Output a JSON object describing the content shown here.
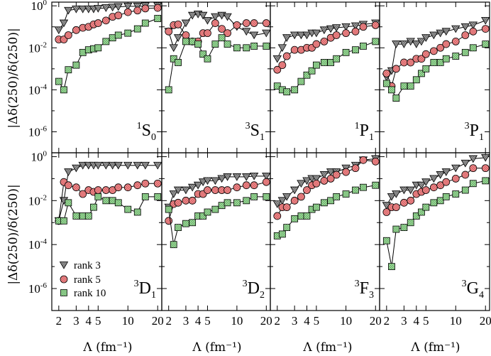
{
  "chart_data": {
    "type": "line",
    "ylabel": "|Δδ(250)/δ(250)|",
    "xlabel": "Λ (fm⁻¹)",
    "xscale": "log",
    "yscale": "log",
    "xlim": [
      1.7,
      22
    ],
    "ylim": [
      1e-07,
      1.5
    ],
    "x_ticks": [
      2,
      3,
      4,
      5,
      10,
      20
    ],
    "x_tick_labels": [
      "2",
      "3",
      "4",
      "5",
      "10",
      "20"
    ],
    "y_ticks": [
      {
        "base": "10",
        "exp": "0",
        "value": 1
      },
      {
        "base": "10",
        "exp": "-2",
        "value": 0.01
      },
      {
        "base": "10",
        "exp": "-4",
        "value": 0.0001
      },
      {
        "base": "10",
        "exp": "-6",
        "value": 1e-06
      }
    ],
    "legend": {
      "position": "bottom-left of panel 3D1",
      "entries": [
        {
          "name": "rank 3",
          "marker": "triangle-down",
          "color": "#8c8c8c"
        },
        {
          "name": "rank 5",
          "marker": "circle",
          "color": "#f08080"
        },
        {
          "name": "rank 10",
          "marker": "square",
          "color": "#90d890"
        }
      ]
    },
    "x": [
      2,
      2.25,
      2.5,
      3,
      3.5,
      4,
      4.5,
      5,
      6,
      7,
      8,
      10,
      12.5,
      15,
      20
    ],
    "panels": [
      {
        "name": "1S0",
        "label": {
          "pre": "1",
          "main": "S",
          "sub": "0"
        },
        "series": [
          {
            "name": "rank 3",
            "values": [
              0.07,
              0.15,
              0.6,
              0.7,
              0.7,
              0.7,
              0.7,
              0.75,
              0.8,
              0.85,
              0.9,
              0.95,
              0.95,
              1.0,
              1.0
            ]
          },
          {
            "name": "rank 5",
            "values": [
              0.025,
              0.025,
              0.04,
              0.07,
              0.09,
              0.1,
              0.13,
              0.15,
              0.2,
              0.3,
              0.35,
              0.5,
              0.6,
              0.75,
              0.8
            ]
          },
          {
            "name": "rank 10",
            "values": [
              0.00025,
              0.0001,
              0.0009,
              0.0015,
              0.006,
              0.008,
              0.009,
              0.01,
              0.02,
              0.03,
              0.04,
              0.05,
              0.08,
              0.15,
              0.25
            ]
          }
        ]
      },
      {
        "name": "3S1",
        "label": {
          "pre": "3",
          "main": "S",
          "sub": "1"
        },
        "series": [
          {
            "name": "rank 3",
            "values": [
              0.06,
              0.01,
              0.03,
              0.15,
              0.35,
              0.4,
              0.35,
              0.2,
              0.3,
              0.35,
              0.3,
              0.1,
              0.06,
              0.04,
              0.05
            ]
          },
          {
            "name": "rank 5",
            "values": [
              0.06,
              0.12,
              0.13,
              0.04,
              0.02,
              0.02,
              0.05,
              0.05,
              0.15,
              0.08,
              0.05,
              0.12,
              0.15,
              0.15,
              0.15
            ]
          },
          {
            "name": "rank 10",
            "values": [
              0.0001,
              0.003,
              0.002,
              0.02,
              0.02,
              0.015,
              0.005,
              0.003,
              0.015,
              0.03,
              0.015,
              0.01,
              0.01,
              0.012,
              0.012
            ]
          }
        ]
      },
      {
        "name": "1P1",
        "label": {
          "pre": "1",
          "main": "P",
          "sub": "1"
        },
        "series": [
          {
            "name": "rank 3",
            "values": [
              0.003,
              0.01,
              0.03,
              0.04,
              0.04,
              0.04,
              0.05,
              0.05,
              0.07,
              0.08,
              0.09,
              0.1,
              0.11,
              0.13,
              0.15
            ]
          },
          {
            "name": "rank 5",
            "values": [
              0.0009,
              0.0015,
              0.004,
              0.008,
              0.008,
              0.01,
              0.01,
              0.015,
              0.02,
              0.03,
              0.04,
              0.05,
              0.06,
              0.1,
              0.12
            ]
          },
          {
            "name": "rank 10",
            "values": [
              0.00015,
              0.0001,
              8e-05,
              0.0001,
              0.00025,
              0.0005,
              0.0008,
              0.0015,
              0.002,
              0.002,
              0.003,
              0.006,
              0.008,
              0.012,
              0.02
            ]
          }
        ]
      },
      {
        "name": "3P1",
        "label": {
          "pre": "3",
          "main": "P",
          "sub": "1"
        },
        "series": [
          {
            "name": "rank 3",
            "values": [
              0.0004,
              0.0008,
              0.015,
              0.015,
              0.02,
              0.015,
              0.02,
              0.03,
              0.04,
              0.05,
              0.06,
              0.08,
              0.1,
              0.12,
              0.2
            ]
          },
          {
            "name": "rank 5",
            "values": [
              0.0006,
              0.00015,
              0.001,
              0.002,
              0.002,
              0.003,
              0.003,
              0.005,
              0.007,
              0.01,
              0.015,
              0.02,
              0.04,
              0.06,
              0.08
            ]
          },
          {
            "name": "rank 10",
            "values": [
              0.0002,
              0.0001,
              4e-05,
              0.00015,
              0.00015,
              0.0003,
              0.0006,
              0.001,
              0.002,
              0.002,
              0.003,
              0.004,
              0.006,
              0.01,
              0.015
            ]
          }
        ]
      },
      {
        "name": "3D1",
        "label": {
          "pre": "3",
          "main": "D",
          "sub": "1"
        },
        "series": [
          {
            "name": "rank 3",
            "values": [
              0.0012,
              0.01,
              0.2,
              0.3,
              0.4,
              0.4,
              0.4,
              0.4,
              0.4,
              0.4,
              0.4,
              0.4,
              0.4,
              0.4,
              0.4
            ]
          },
          {
            "name": "rank 5",
            "values": [
              0.0012,
              0.07,
              0.05,
              0.04,
              0.02,
              0.03,
              0.025,
              0.03,
              0.03,
              0.03,
              0.04,
              0.04,
              0.05,
              0.06,
              0.06
            ]
          },
          {
            "name": "rank 10",
            "values": [
              0.0012,
              0.0012,
              0.008,
              0.002,
              0.002,
              0.002,
              0.005,
              0.015,
              0.01,
              0.01,
              0.008,
              0.004,
              0.003,
              0.015,
              0.015
            ]
          }
        ]
      },
      {
        "name": "3D2",
        "label": {
          "pre": "3",
          "main": "D",
          "sub": "2"
        },
        "series": [
          {
            "name": "rank 3",
            "values": [
              0.005,
              0.02,
              0.03,
              0.03,
              0.04,
              0.05,
              0.07,
              0.08,
              0.08,
              0.1,
              0.12,
              0.12,
              0.12,
              0.13,
              0.13
            ]
          },
          {
            "name": "rank 5",
            "values": [
              0.0012,
              0.007,
              0.008,
              0.01,
              0.01,
              0.02,
              0.02,
              0.03,
              0.03,
              0.03,
              0.03,
              0.04,
              0.05,
              0.05,
              0.07
            ]
          },
          {
            "name": "rank 10",
            "values": [
              0.004,
              0.0001,
              0.0006,
              0.0009,
              0.001,
              0.002,
              0.002,
              0.003,
              0.004,
              0.006,
              0.008,
              0.008,
              0.01,
              0.015,
              0.015
            ]
          }
        ]
      },
      {
        "name": "3F3",
        "label": {
          "pre": "3",
          "main": "F",
          "sub": "3"
        },
        "series": [
          {
            "name": "rank 3",
            "values": [
              0.007,
              0.01,
              0.015,
              0.03,
              0.06,
              0.08,
              0.1,
              0.1,
              0.15,
              0.2,
              0.2,
              0.3,
              0.4,
              0.7,
              0.8
            ]
          },
          {
            "name": "rank 5",
            "values": [
              0.002,
              0.005,
              0.005,
              0.01,
              0.015,
              0.03,
              0.05,
              0.06,
              0.08,
              0.1,
              0.15,
              0.2,
              0.3,
              0.7,
              0.6
            ]
          },
          {
            "name": "rank 10",
            "values": [
              0.00025,
              0.0003,
              0.0006,
              0.0015,
              0.002,
              0.002,
              0.004,
              0.005,
              0.008,
              0.01,
              0.015,
              0.02,
              0.03,
              0.04,
              0.05
            ]
          }
        ]
      },
      {
        "name": "3G4",
        "label": {
          "pre": "3",
          "main": "G",
          "sub": "4"
        },
        "series": [
          {
            "name": "rank 3",
            "values": [
              0.006,
              0.015,
              0.02,
              0.03,
              0.03,
              0.05,
              0.05,
              0.07,
              0.1,
              0.15,
              0.2,
              0.3,
              0.5,
              0.8,
              0.9
            ]
          },
          {
            "name": "rank 5",
            "values": [
              0.003,
              0.005,
              0.005,
              0.008,
              0.01,
              0.02,
              0.025,
              0.03,
              0.04,
              0.05,
              0.07,
              0.1,
              0.15,
              0.3,
              0.3
            ]
          },
          {
            "name": "rank 10",
            "values": [
              0.00015,
              1e-05,
              0.0005,
              0.0006,
              0.001,
              0.002,
              0.003,
              0.005,
              0.008,
              0.01,
              0.015,
              0.02,
              0.03,
              0.06,
              0.08
            ]
          }
        ]
      }
    ]
  },
  "labels": {
    "ylabel_top": "|Δδ(250)/δ(250)|",
    "ylabel_bottom": "|Δδ(250)/δ(250)|",
    "xlabel_1": "Λ (fm⁻¹)",
    "xlabel_2": "Λ (fm⁻¹)",
    "xlabel_3": "Λ (fm⁻¹)",
    "xlabel_4": "Λ (fm⁻¹)"
  }
}
